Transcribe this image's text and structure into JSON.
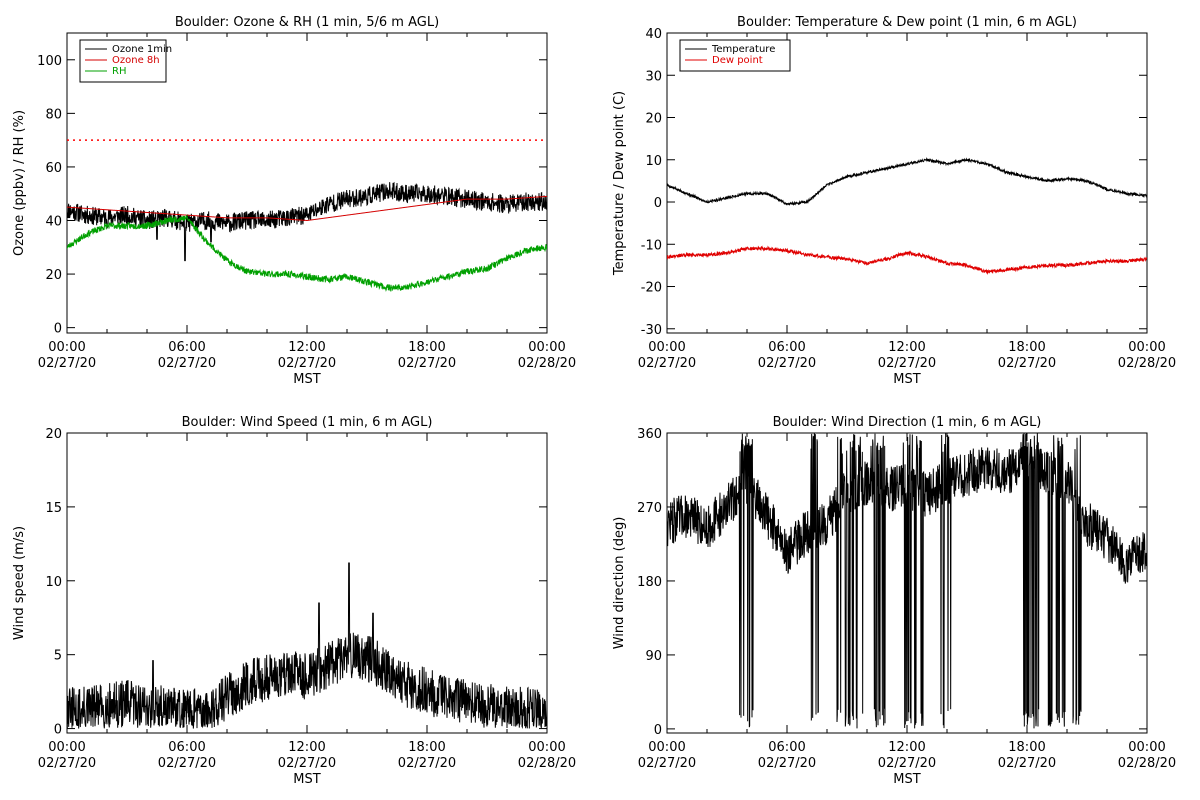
{
  "chart_data": [
    {
      "type": "line",
      "title": "Boulder: Ozone & RH (1 min, 5/6 m AGL)",
      "xlabel": "MST",
      "ylabel": "Ozone (ppbv) / RH (%)",
      "xlim": [
        "02/27/20 00:00",
        "02/28/20 00:00"
      ],
      "ylim": [
        -2,
        110
      ],
      "x_ticks": [
        {
          "time": "00:00",
          "date": "02/27/20",
          "hour": 0
        },
        {
          "time": "06:00",
          "date": "02/27/20",
          "hour": 6
        },
        {
          "time": "12:00",
          "date": "02/27/20",
          "hour": 12
        },
        {
          "time": "18:00",
          "date": "02/27/20",
          "hour": 18
        },
        {
          "time": "00:00",
          "date": "02/28/20",
          "hour": 24
        }
      ],
      "y_ticks": [
        0,
        20,
        40,
        60,
        80,
        100
      ],
      "legend_position": "top-left",
      "reference_line": {
        "value": 70,
        "style": "dotted",
        "color": "#ff0000"
      },
      "series": [
        {
          "name": "Ozone 1min",
          "color": "#000000",
          "noise": 3.5,
          "seed": 11,
          "points": [
            [
              0,
              44
            ],
            [
              1,
              42
            ],
            [
              2,
              41
            ],
            [
              3,
              42
            ],
            [
              4,
              40
            ],
            [
              5,
              41
            ],
            [
              6,
              39
            ],
            [
              7,
              40
            ],
            [
              8,
              39
            ],
            [
              9,
              40
            ],
            [
              10,
              40
            ],
            [
              11,
              41
            ],
            [
              12,
              42
            ],
            [
              13,
              46
            ],
            [
              14,
              48
            ],
            [
              15,
              49
            ],
            [
              16,
              51
            ],
            [
              17,
              50
            ],
            [
              18,
              50
            ],
            [
              19,
              49
            ],
            [
              20,
              48
            ],
            [
              21,
              47
            ],
            [
              22,
              46
            ],
            [
              23,
              47
            ],
            [
              24,
              47
            ]
          ],
          "spikes": [
            [
              5.9,
              25
            ],
            [
              4.5,
              33
            ],
            [
              7.2,
              32
            ]
          ]
        },
        {
          "name": "Ozone 8h",
          "color": "#d40000",
          "noise": 0,
          "seed": 0,
          "points": [
            [
              0,
              45
            ],
            [
              2,
              44
            ],
            [
              4,
              43
            ],
            [
              6,
              42
            ],
            [
              8,
              41
            ],
            [
              10,
              41
            ],
            [
              12,
              40
            ],
            [
              14,
              42
            ],
            [
              16,
              44
            ],
            [
              18,
              46
            ],
            [
              20,
              48
            ],
            [
              22,
              48
            ],
            [
              24,
              49
            ]
          ],
          "spikes": []
        },
        {
          "name": "RH",
          "color": "#00a000",
          "noise": 1.2,
          "seed": 23,
          "points": [
            [
              0,
              30
            ],
            [
              1,
              35
            ],
            [
              2,
              38
            ],
            [
              3,
              38
            ],
            [
              4,
              38
            ],
            [
              5,
              40
            ],
            [
              6,
              41
            ],
            [
              7,
              32
            ],
            [
              8,
              25
            ],
            [
              9,
              21
            ],
            [
              10,
              20
            ],
            [
              11,
              20
            ],
            [
              12,
              19
            ],
            [
              13,
              18
            ],
            [
              14,
              19
            ],
            [
              15,
              17
            ],
            [
              16,
              15
            ],
            [
              17,
              15
            ],
            [
              18,
              17
            ],
            [
              19,
              19
            ],
            [
              20,
              21
            ],
            [
              21,
              22
            ],
            [
              22,
              26
            ],
            [
              23,
              29
            ],
            [
              24,
              30
            ]
          ],
          "spikes": []
        }
      ]
    },
    {
      "type": "line",
      "title": "Boulder: Temperature & Dew point (1 min, 6 m AGL)",
      "xlabel": "MST",
      "ylabel": "Temperature / Dew point (C)",
      "xlim": [
        "02/27/20 00:00",
        "02/28/20 00:00"
      ],
      "ylim": [
        -31,
        40
      ],
      "x_ticks": [
        {
          "time": "00:00",
          "date": "02/27/20",
          "hour": 0
        },
        {
          "time": "06:00",
          "date": "02/27/20",
          "hour": 6
        },
        {
          "time": "12:00",
          "date": "02/27/20",
          "hour": 12
        },
        {
          "time": "18:00",
          "date": "02/27/20",
          "hour": 18
        },
        {
          "time": "00:00",
          "date": "02/28/20",
          "hour": 24
        }
      ],
      "y_ticks": [
        -30,
        -20,
        -10,
        0,
        10,
        20,
        30,
        40
      ],
      "legend_position": "top-left",
      "series": [
        {
          "name": "Temperature",
          "color": "#000000",
          "noise": 0.3,
          "seed": 5,
          "points": [
            [
              0,
              4
            ],
            [
              1,
              2
            ],
            [
              2,
              0
            ],
            [
              3,
              1
            ],
            [
              4,
              2
            ],
            [
              5,
              2
            ],
            [
              6,
              -0.5
            ],
            [
              7,
              0
            ],
            [
              8,
              4
            ],
            [
              9,
              6
            ],
            [
              10,
              7
            ],
            [
              11,
              8
            ],
            [
              12,
              9
            ],
            [
              13,
              10
            ],
            [
              14,
              9
            ],
            [
              15,
              10
            ],
            [
              16,
              9
            ],
            [
              17,
              7
            ],
            [
              18,
              6
            ],
            [
              19,
              5
            ],
            [
              20,
              5.5
            ],
            [
              21,
              5
            ],
            [
              22,
              3
            ],
            [
              23,
              2
            ],
            [
              24,
              1.5
            ]
          ],
          "spikes": []
        },
        {
          "name": "Dew point",
          "color": "#e00000",
          "noise": 0.4,
          "seed": 9,
          "points": [
            [
              0,
              -13
            ],
            [
              1,
              -12.5
            ],
            [
              2,
              -12.5
            ],
            [
              3,
              -12
            ],
            [
              4,
              -11
            ],
            [
              5,
              -11
            ],
            [
              6,
              -11.5
            ],
            [
              7,
              -12.5
            ],
            [
              8,
              -13
            ],
            [
              9,
              -13.5
            ],
            [
              10,
              -14.5
            ],
            [
              11,
              -13.5
            ],
            [
              12,
              -12
            ],
            [
              13,
              -13
            ],
            [
              14,
              -14.5
            ],
            [
              15,
              -15
            ],
            [
              16,
              -16.5
            ],
            [
              17,
              -16
            ],
            [
              18,
              -15.5
            ],
            [
              19,
              -15
            ],
            [
              20,
              -15
            ],
            [
              21,
              -14.5
            ],
            [
              22,
              -14
            ],
            [
              23,
              -14
            ],
            [
              24,
              -13.5
            ]
          ],
          "spikes": []
        }
      ]
    },
    {
      "type": "line",
      "title": "Boulder: Wind Speed (1 min, 6 m AGL)",
      "xlabel": "MST",
      "ylabel": "Wind speed (m/s)",
      "xlim": [
        "02/27/20 00:00",
        "02/28/20 00:00"
      ],
      "ylim": [
        -0.3,
        20
      ],
      "x_ticks": [
        {
          "time": "00:00",
          "date": "02/27/20",
          "hour": 0
        },
        {
          "time": "06:00",
          "date": "02/27/20",
          "hour": 6
        },
        {
          "time": "12:00",
          "date": "02/27/20",
          "hour": 12
        },
        {
          "time": "18:00",
          "date": "02/27/20",
          "hour": 18
        },
        {
          "time": "00:00",
          "date": "02/28/20",
          "hour": 24
        }
      ],
      "y_ticks": [
        0,
        5,
        10,
        15,
        20
      ],
      "series": [
        {
          "name": "",
          "color": "#000000",
          "noise": 1.6,
          "seed": 31,
          "floor": 0,
          "points": [
            [
              0,
              1.2
            ],
            [
              1,
              1.3
            ],
            [
              2,
              1.5
            ],
            [
              3,
              1.7
            ],
            [
              4,
              1.5
            ],
            [
              5,
              1.3
            ],
            [
              6,
              1.2
            ],
            [
              7,
              1.0
            ],
            [
              8,
              2.2
            ],
            [
              9,
              3.0
            ],
            [
              10,
              3.5
            ],
            [
              11,
              3.8
            ],
            [
              12,
              3.5
            ],
            [
              13,
              4.2
            ],
            [
              14,
              5.0
            ],
            [
              15,
              4.8
            ],
            [
              16,
              4.0
            ],
            [
              17,
              3.0
            ],
            [
              18,
              2.5
            ],
            [
              19,
              2.0
            ],
            [
              20,
              1.8
            ],
            [
              21,
              1.5
            ],
            [
              22,
              1.3
            ],
            [
              23,
              1.2
            ],
            [
              24,
              1.0
            ]
          ],
          "spikes": [
            [
              14.1,
              11.2
            ],
            [
              15.3,
              7.8
            ],
            [
              12.6,
              8.5
            ],
            [
              4.3,
              4.6
            ]
          ]
        }
      ]
    },
    {
      "type": "line",
      "title": "Boulder: Wind Direction (1 min, 6 m AGL)",
      "xlabel": "MST",
      "ylabel": "Wind direction (deg)",
      "xlim": [
        "02/27/20 00:00",
        "02/28/20 00:00"
      ],
      "ylim": [
        -5,
        360
      ],
      "x_ticks": [
        {
          "time": "00:00",
          "date": "02/27/20",
          "hour": 0
        },
        {
          "time": "06:00",
          "date": "02/27/20",
          "hour": 6
        },
        {
          "time": "12:00",
          "date": "02/27/20",
          "hour": 12
        },
        {
          "time": "18:00",
          "date": "02/27/20",
          "hour": 18
        },
        {
          "time": "00:00",
          "date": "02/28/20",
          "hour": 24
        }
      ],
      "y_ticks": [
        0,
        90,
        180,
        270,
        360
      ],
      "series": [
        {
          "name": "",
          "color": "#000000",
          "noise": 28,
          "seed": 47,
          "floor": 0,
          "ceil": 360,
          "points": [
            [
              0,
              250
            ],
            [
              1,
              260
            ],
            [
              2,
              245
            ],
            [
              3,
              270
            ],
            [
              4,
              300
            ],
            [
              5,
              260
            ],
            [
              6,
              215
            ],
            [
              7,
              240
            ],
            [
              8,
              250
            ],
            [
              9,
              290
            ],
            [
              10,
              300
            ],
            [
              11,
              290
            ],
            [
              12,
              295
            ],
            [
              13,
              285
            ],
            [
              14,
              300
            ],
            [
              15,
              310
            ],
            [
              16,
              320
            ],
            [
              17,
              310
            ],
            [
              18,
              330
            ],
            [
              19,
              315
            ],
            [
              20,
              300
            ],
            [
              21,
              250
            ],
            [
              22,
              230
            ],
            [
              23,
              200
            ],
            [
              24,
              220
            ]
          ],
          "spikes": [],
          "wrap_bands": [
            [
              3.6,
              4.3
            ],
            [
              7.2,
              7.6
            ],
            [
              8.5,
              9.8
            ],
            [
              10.2,
              10.9
            ],
            [
              11.8,
              12.8
            ],
            [
              13.7,
              14.2
            ],
            [
              17.8,
              18.6
            ],
            [
              19.0,
              19.9
            ],
            [
              20.3,
              20.7
            ]
          ]
        }
      ]
    }
  ]
}
